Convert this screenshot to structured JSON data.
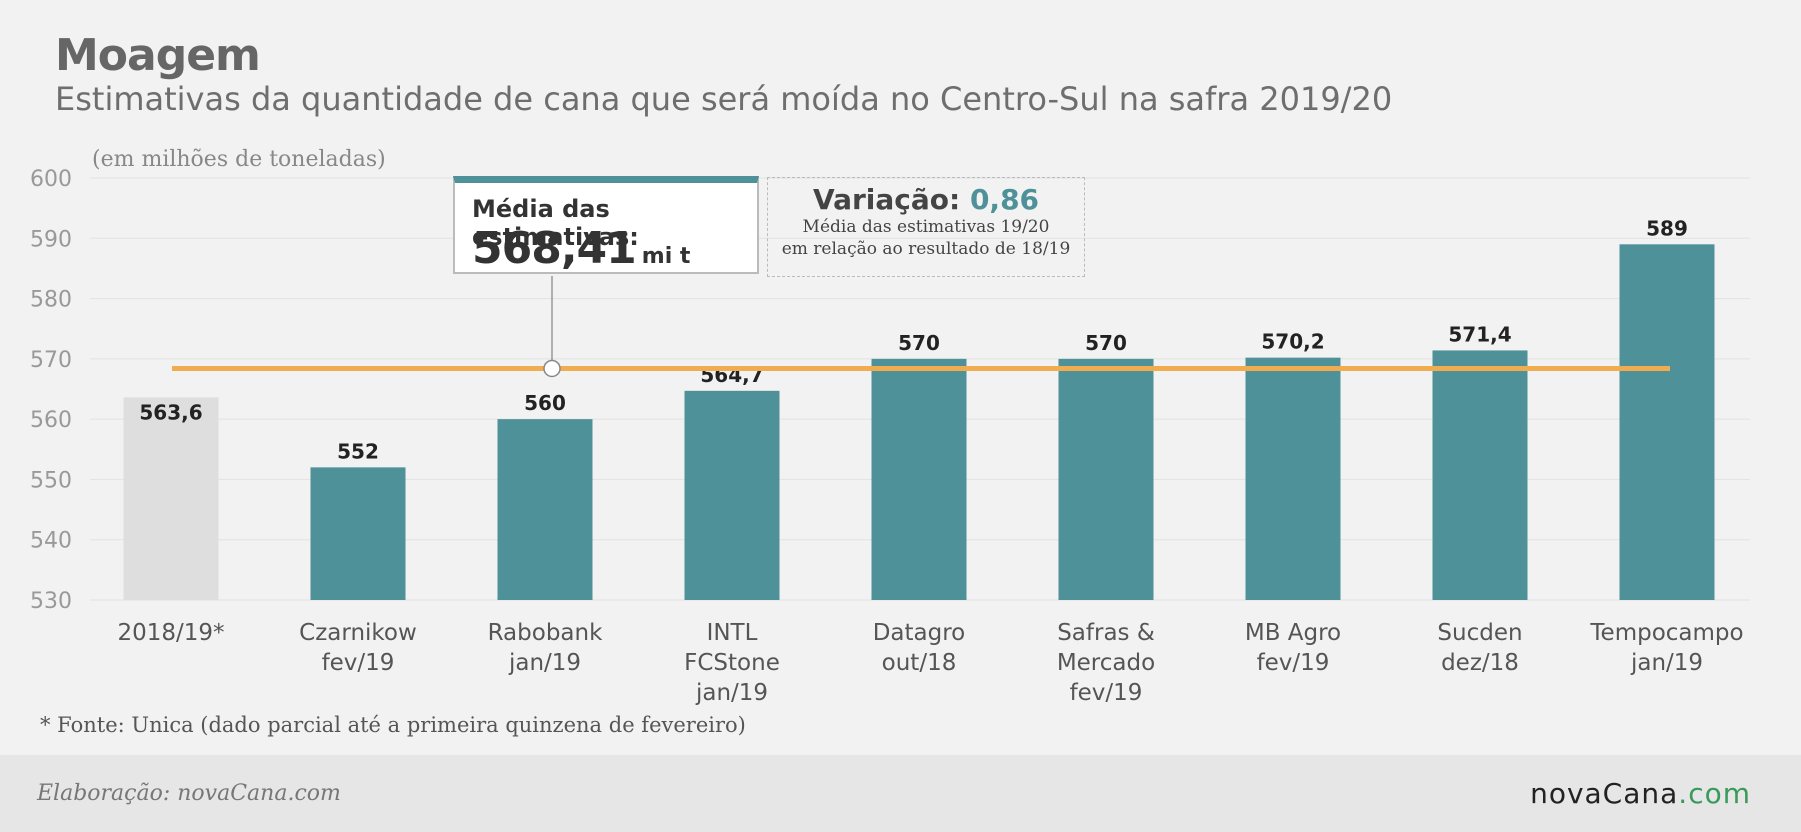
{
  "title": "Moagem",
  "subtitle": "Estimativas da quantidade de cana que será moída no Centro-Sul na safra 2019/20",
  "unit_note": "(em milhões de toneladas)",
  "average_box": {
    "label": "Média das estimativas:",
    "value": "568,41",
    "unit": "mi t"
  },
  "variation_box": {
    "title": "Variação:",
    "value": "0,86",
    "note_line1": "Média das estimativas 19/20",
    "note_line2": "em relação ao resultado de 18/19"
  },
  "footnote": "* Fonte: Unica (dado parcial até a primeira quinzena de fevereiro)",
  "footer": {
    "credit": "Elaboração: novaCana.com",
    "logo_main": "novaCana",
    "logo_suffix": ".com"
  },
  "colors": {
    "bar": "#4e9198",
    "bar_reference": "#dedede",
    "average_line": "#f0ac4e",
    "logo_suffix": "#3a9a5b"
  },
  "chart_data": {
    "type": "bar",
    "ylabel": "(em milhões de toneladas)",
    "ylim": [
      530,
      600
    ],
    "yticks": [
      530,
      540,
      550,
      560,
      570,
      580,
      590,
      600
    ],
    "grid": true,
    "categories": [
      [
        "2018/19*"
      ],
      [
        "Czarnikow",
        "fev/19"
      ],
      [
        "Rabobank",
        "jan/19"
      ],
      [
        "INTL",
        "FCStone",
        "jan/19"
      ],
      [
        "Datagro",
        "out/18"
      ],
      [
        "Safras &",
        "Mercado",
        "fev/19"
      ],
      [
        "MB Agro",
        "fev/19"
      ],
      [
        "Sucden",
        "dez/18"
      ],
      [
        "Tempocampo",
        "jan/19"
      ]
    ],
    "values": [
      563.6,
      552,
      560,
      564.7,
      570,
      570,
      570.2,
      571.4,
      589
    ],
    "value_labels": [
      "563,6",
      "552",
      "560",
      "564,7",
      "570",
      "570",
      "570,2",
      "571,4",
      "589"
    ],
    "reference_index": 0,
    "average_line": 568.41
  }
}
